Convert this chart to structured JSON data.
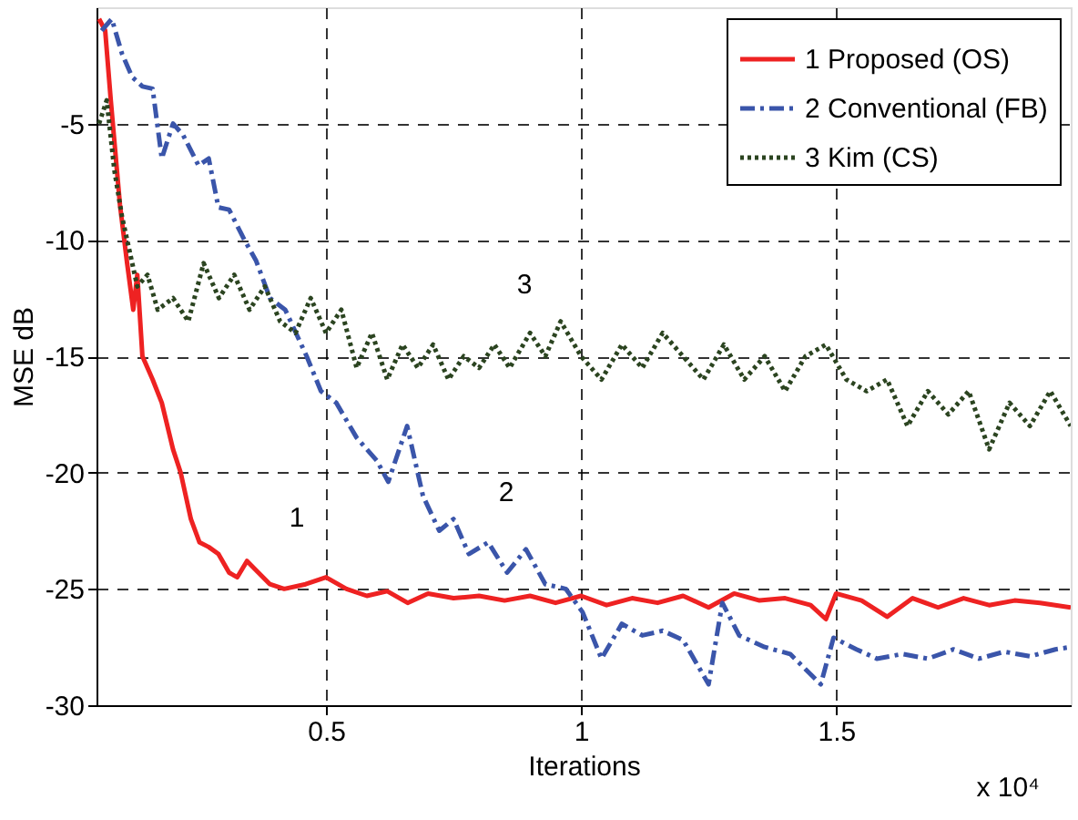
{
  "chart_data": {
    "type": "line",
    "xlabel": "Iterations",
    "ylabel": "MSE dB",
    "xlim": [
      0.05,
      1.96
    ],
    "ylim": [
      -30,
      0
    ],
    "xticks": [
      0.5,
      1,
      1.5
    ],
    "yticks": [
      -30,
      -25,
      -20,
      -15,
      -10,
      -5
    ],
    "grid": true,
    "legend": "top right",
    "series": [
      {
        "name": "1 Proposed (OS)",
        "color": "#ee2222",
        "line_style": "solid",
        "x": [
          0.055,
          0.067,
          0.078,
          0.096,
          0.11,
          0.122,
          0.13,
          0.14,
          0.16,
          0.178,
          0.2,
          0.215,
          0.235,
          0.252,
          0.27,
          0.289,
          0.31,
          0.326,
          0.345,
          0.363,
          0.39,
          0.418,
          0.46,
          0.5,
          0.54,
          0.58,
          0.62,
          0.66,
          0.7,
          0.75,
          0.8,
          0.85,
          0.9,
          0.95,
          1.0,
          1.05,
          1.1,
          1.15,
          1.2,
          1.25,
          1.3,
          1.35,
          1.4,
          1.45,
          1.48,
          1.5,
          1.55,
          1.6,
          1.65,
          1.7,
          1.75,
          1.8,
          1.85,
          1.9,
          1.96
        ],
        "values": [
          -0.5,
          -1,
          -4,
          -8.5,
          -11,
          -13,
          -11.5,
          -15,
          -16,
          -17,
          -19,
          -20,
          -22,
          -23,
          -23.2,
          -23.5,
          -24.3,
          -24.5,
          -23.8,
          -24.2,
          -24.8,
          -25,
          -24.8,
          -24.5,
          -25,
          -25.3,
          -25.1,
          -25.6,
          -25.2,
          -25.4,
          -25.3,
          -25.5,
          -25.3,
          -25.6,
          -25.3,
          -25.7,
          -25.4,
          -25.6,
          -25.3,
          -25.8,
          -25.2,
          -25.5,
          -25.4,
          -25.7,
          -26.3,
          -25.2,
          -25.5,
          -26.2,
          -25.4,
          -25.8,
          -25.4,
          -25.7,
          -25.5,
          -25.6,
          -25.8
        ]
      },
      {
        "name": "2 Conventional (FB)",
        "color": "#3a55aa",
        "line_style": "dashdot",
        "x": [
          0.06,
          0.08,
          0.1,
          0.12,
          0.14,
          0.16,
          0.178,
          0.2,
          0.22,
          0.25,
          0.27,
          0.289,
          0.31,
          0.34,
          0.363,
          0.39,
          0.42,
          0.462,
          0.49,
          0.52,
          0.56,
          0.6,
          0.622,
          0.659,
          0.69,
          0.722,
          0.75,
          0.78,
          0.818,
          0.855,
          0.892,
          0.93,
          0.97,
          1.003,
          1.04,
          1.08,
          1.12,
          1.16,
          1.2,
          1.25,
          1.277,
          1.31,
          1.36,
          1.41,
          1.47,
          1.495,
          1.54,
          1.58,
          1.63,
          1.68,
          1.73,
          1.78,
          1.83,
          1.88,
          1.93,
          1.96
        ],
        "values": [
          -1,
          -0.5,
          -2,
          -3,
          -3.4,
          -3.5,
          -6.5,
          -5,
          -5.5,
          -6.8,
          -6.5,
          -8.6,
          -8.7,
          -10,
          -10.9,
          -12.5,
          -13,
          -15,
          -16.5,
          -17,
          -18.5,
          -19.5,
          -20.4,
          -18,
          -21,
          -22.5,
          -22,
          -23.5,
          -23,
          -24.3,
          -23.3,
          -24.8,
          -25,
          -26,
          -28,
          -26.5,
          -27,
          -26.8,
          -27.2,
          -29.1,
          -25.6,
          -27,
          -27.5,
          -27.8,
          -29.1,
          -27.1,
          -27.6,
          -28,
          -27.8,
          -28,
          -27.6,
          -28,
          -27.7,
          -27.9,
          -27.6,
          -27.5
        ]
      },
      {
        "name": "3  Kim (CS)",
        "color": "#2b4420",
        "line_style": "dotted",
        "x": [
          0.055,
          0.07,
          0.085,
          0.1,
          0.115,
          0.13,
          0.15,
          0.17,
          0.2,
          0.23,
          0.26,
          0.29,
          0.32,
          0.35,
          0.38,
          0.41,
          0.44,
          0.47,
          0.5,
          0.53,
          0.56,
          0.59,
          0.62,
          0.65,
          0.68,
          0.71,
          0.74,
          0.77,
          0.8,
          0.83,
          0.86,
          0.9,
          0.93,
          0.96,
          1.0,
          1.04,
          1.08,
          1.12,
          1.16,
          1.2,
          1.24,
          1.28,
          1.32,
          1.36,
          1.4,
          1.44,
          1.48,
          1.52,
          1.56,
          1.6,
          1.64,
          1.68,
          1.72,
          1.76,
          1.8,
          1.84,
          1.88,
          1.92,
          1.96
        ],
        "values": [
          -5,
          -4,
          -7,
          -9,
          -10.5,
          -12,
          -11.5,
          -13,
          -12.5,
          -13.5,
          -11,
          -12.5,
          -11.5,
          -13,
          -12,
          -13.5,
          -14,
          -12.5,
          -14,
          -13,
          -15.5,
          -14,
          -16,
          -14.5,
          -15.5,
          -14.5,
          -16,
          -15,
          -15.5,
          -14.5,
          -15.5,
          -14,
          -15,
          -13.5,
          -15,
          -16,
          -14.5,
          -15.5,
          -14,
          -15,
          -16,
          -14.5,
          -16,
          -15,
          -16.5,
          -15,
          -14.5,
          -16,
          -16.5,
          -16,
          -18,
          -16.5,
          -17.5,
          -16.5,
          -19,
          -17,
          -18,
          -16.5,
          -18
        ]
      }
    ],
    "annotations": [
      "1",
      "2",
      "3",
      "x 10⁴"
    ]
  }
}
